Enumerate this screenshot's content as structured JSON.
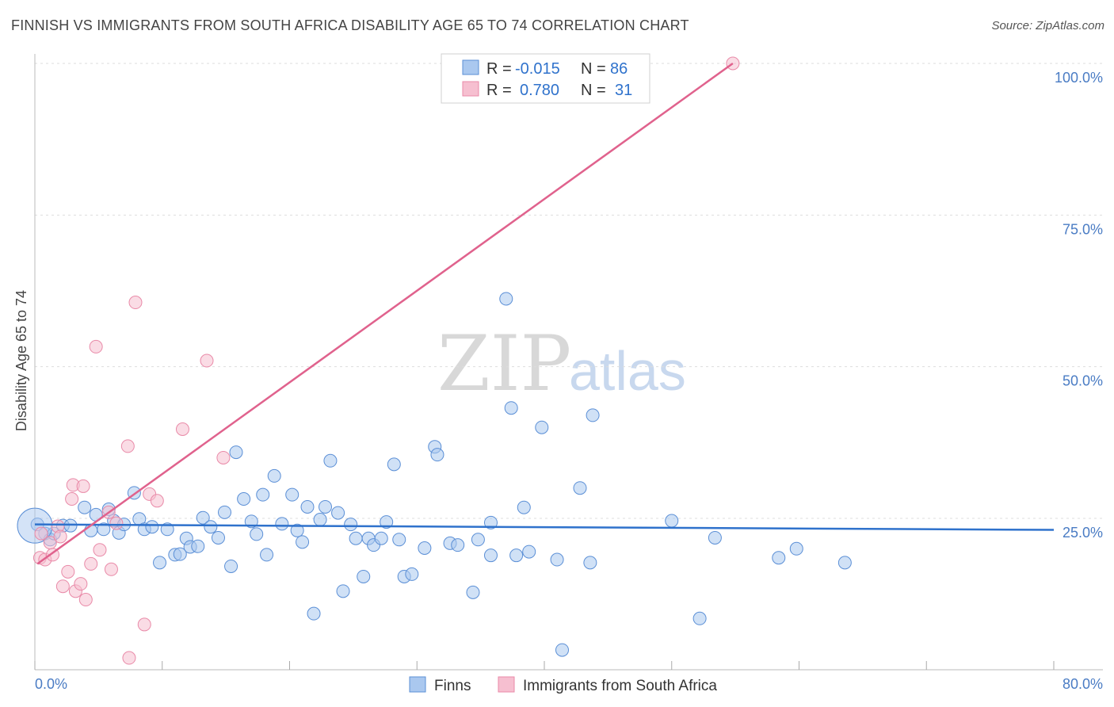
{
  "header": {
    "title": "FINNISH VS IMMIGRANTS FROM SOUTH AFRICA DISABILITY AGE 65 TO 74 CORRELATION CHART",
    "source": "Source: ZipAtlas.com"
  },
  "watermark": {
    "zip": "ZIP",
    "atlas": "atlas"
  },
  "colors": {
    "finns_fill": "#aac8ef",
    "finns_stroke": "#5b8fd6",
    "finns_line": "#2f72cc",
    "sa_fill": "#f6bfd0",
    "sa_stroke": "#e98aa8",
    "sa_line": "#e0628d",
    "tick_text": "#4a7cc4"
  },
  "legend": {
    "rows": [
      {
        "r_label": "R =",
        "r_value": "-0.015",
        "n_label": "N =",
        "n_value": "86"
      },
      {
        "r_label": "R =",
        "r_value": "0.780",
        "n_label": "N =",
        "n_value": "31"
      }
    ]
  },
  "bottom_legend": {
    "finns": "Finns",
    "sa": "Immigrants from South Africa"
  },
  "chart_data": {
    "type": "scatter",
    "title": "FINNISH VS IMMIGRANTS FROM SOUTH AFRICA DISABILITY AGE 65 TO 74 CORRELATION CHART",
    "xlabel": "",
    "ylabel": "Disability Age 65 to 74",
    "xlim": [
      0,
      80
    ],
    "ylim": [
      0,
      105
    ],
    "x_tick_labels": [
      "0.0%",
      "80.0%"
    ],
    "y_ticks": [
      25,
      50,
      75,
      100
    ],
    "y_tick_labels": [
      "25.0%",
      "50.0%",
      "75.0%",
      "100.0%"
    ],
    "series": [
      {
        "name": "Finns",
        "trend": {
          "x": [
            0,
            80
          ],
          "y": [
            24.0,
            23.1
          ]
        },
        "points": [
          [
            0.2,
            24.0
          ],
          [
            0.8,
            22.5
          ],
          [
            1.2,
            21.5
          ],
          [
            1.5,
            22.5
          ],
          [
            2.2,
            23.8
          ],
          [
            2.8,
            23.8
          ],
          [
            3.9,
            26.8
          ],
          [
            4.4,
            23.0
          ],
          [
            4.8,
            25.6
          ],
          [
            5.4,
            23.2
          ],
          [
            5.8,
            26.5
          ],
          [
            6.2,
            24.6
          ],
          [
            6.6,
            22.6
          ],
          [
            7.0,
            24.0
          ],
          [
            7.8,
            29.2
          ],
          [
            8.2,
            24.9
          ],
          [
            8.6,
            23.2
          ],
          [
            9.2,
            23.6
          ],
          [
            9.8,
            17.7
          ],
          [
            10.4,
            23.2
          ],
          [
            11.0,
            19.0
          ],
          [
            11.4,
            19.1
          ],
          [
            11.9,
            21.7
          ],
          [
            12.2,
            20.3
          ],
          [
            12.8,
            20.4
          ],
          [
            13.2,
            25.1
          ],
          [
            13.8,
            23.6
          ],
          [
            14.4,
            21.8
          ],
          [
            14.9,
            26.0
          ],
          [
            15.4,
            17.1
          ],
          [
            15.8,
            35.9
          ],
          [
            16.4,
            28.2
          ],
          [
            17.0,
            24.5
          ],
          [
            17.4,
            22.4
          ],
          [
            17.9,
            28.9
          ],
          [
            18.2,
            19.0
          ],
          [
            18.8,
            32.0
          ],
          [
            19.4,
            24.1
          ],
          [
            20.2,
            28.9
          ],
          [
            20.6,
            23.0
          ],
          [
            21.0,
            21.1
          ],
          [
            21.4,
            26.9
          ],
          [
            21.9,
            9.3
          ],
          [
            22.4,
            24.8
          ],
          [
            22.8,
            26.9
          ],
          [
            23.2,
            34.5
          ],
          [
            23.8,
            25.9
          ],
          [
            24.2,
            13.0
          ],
          [
            24.8,
            24.0
          ],
          [
            25.2,
            21.7
          ],
          [
            25.8,
            15.4
          ],
          [
            26.2,
            21.7
          ],
          [
            26.6,
            20.6
          ],
          [
            27.2,
            21.7
          ],
          [
            27.6,
            24.4
          ],
          [
            28.2,
            33.9
          ],
          [
            28.6,
            21.5
          ],
          [
            29.0,
            15.4
          ],
          [
            29.6,
            15.8
          ],
          [
            30.6,
            20.1
          ],
          [
            31.4,
            36.8
          ],
          [
            31.6,
            35.5
          ],
          [
            32.6,
            20.9
          ],
          [
            33.2,
            20.6
          ],
          [
            34.4,
            12.8
          ],
          [
            34.8,
            21.5
          ],
          [
            35.8,
            18.9
          ],
          [
            35.8,
            24.3
          ],
          [
            37.0,
            61.2
          ],
          [
            37.4,
            43.2
          ],
          [
            37.8,
            18.9
          ],
          [
            38.4,
            26.8
          ],
          [
            38.8,
            19.5
          ],
          [
            39.8,
            40.0
          ],
          [
            41.0,
            18.2
          ],
          [
            41.4,
            3.3
          ],
          [
            42.8,
            30.0
          ],
          [
            43.6,
            17.7
          ],
          [
            43.8,
            42.0
          ],
          [
            50.0,
            24.6
          ],
          [
            52.2,
            8.5
          ],
          [
            53.4,
            21.8
          ],
          [
            58.4,
            18.5
          ],
          [
            59.8,
            20.0
          ],
          [
            63.6,
            17.7
          ],
          [
            0.0,
            23.8
          ]
        ]
      },
      {
        "name": "Immigrants from South Africa",
        "trend": {
          "x": [
            0.2,
            54.8
          ],
          "y": [
            17.5,
            100.0
          ]
        },
        "points": [
          [
            0.4,
            18.5
          ],
          [
            0.8,
            18.2
          ],
          [
            1.4,
            19.0
          ],
          [
            1.8,
            23.7
          ],
          [
            2.2,
            13.8
          ],
          [
            2.6,
            16.2
          ],
          [
            2.9,
            28.2
          ],
          [
            3.0,
            30.5
          ],
          [
            3.2,
            13.0
          ],
          [
            3.6,
            14.2
          ],
          [
            3.8,
            30.3
          ],
          [
            4.0,
            11.6
          ],
          [
            4.4,
            17.5
          ],
          [
            4.8,
            53.3
          ],
          [
            5.1,
            19.8
          ],
          [
            5.8,
            26.0
          ],
          [
            6.0,
            16.6
          ],
          [
            6.4,
            24.2
          ],
          [
            7.3,
            36.9
          ],
          [
            7.4,
            2.0
          ],
          [
            7.9,
            60.6
          ],
          [
            8.6,
            7.5
          ],
          [
            9.0,
            29.0
          ],
          [
            9.6,
            27.9
          ],
          [
            11.6,
            39.7
          ],
          [
            13.5,
            51.0
          ],
          [
            14.8,
            35.0
          ],
          [
            0.5,
            22.5
          ],
          [
            1.2,
            21.0
          ],
          [
            2.0,
            22.0
          ],
          [
            54.8,
            100.0
          ]
        ]
      }
    ]
  }
}
